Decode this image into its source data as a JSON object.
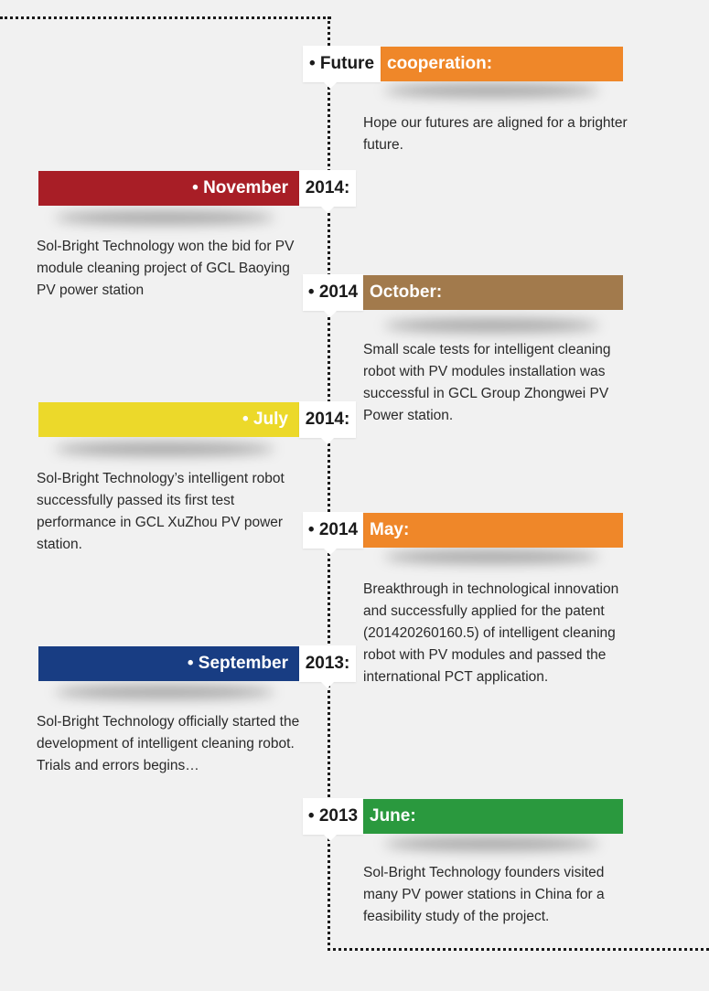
{
  "colors": {
    "orange": "#ef8729",
    "red": "#a81e26",
    "brown": "#a27a4c",
    "yellow": "#ecd92a",
    "blue": "#183d83",
    "green": "#2a993e"
  },
  "entries": [
    {
      "box": "• Future",
      "bar": "cooperation:",
      "desc": "Hope our futures are aligned for a brighter future."
    },
    {
      "box": "2014:",
      "bar": "• November",
      "desc": "Sol-Bright Technology won the bid for PV module cleaning project of GCL Baoying PV power station"
    },
    {
      "box": "• 2014",
      "bar": "October:",
      "desc": "Small scale tests for intelligent cleaning robot with PV modules installation was successful in GCL Group Zhongwei PV Power station."
    },
    {
      "box": "2014:",
      "bar": "• July",
      "desc": "Sol-Bright Technology’s intelligent robot successfully passed its first test performance in GCL XuZhou PV power station."
    },
    {
      "box": "• 2014",
      "bar": "May:",
      "desc": "Breakthrough in technological innovation and successfully applied for the patent (201420260160.5) of intelligent cleaning robot with PV modules and passed the international PCT application."
    },
    {
      "box": "2013:",
      "bar": "• September",
      "desc": "Sol-Bright Technology officially started the development of intelligent cleaning robot. Trials and errors begins…"
    },
    {
      "box": "• 2013",
      "bar": "June:",
      "desc": "Sol-Bright Technology founders visited many PV power stations in China for a feasibility study of the project."
    }
  ]
}
